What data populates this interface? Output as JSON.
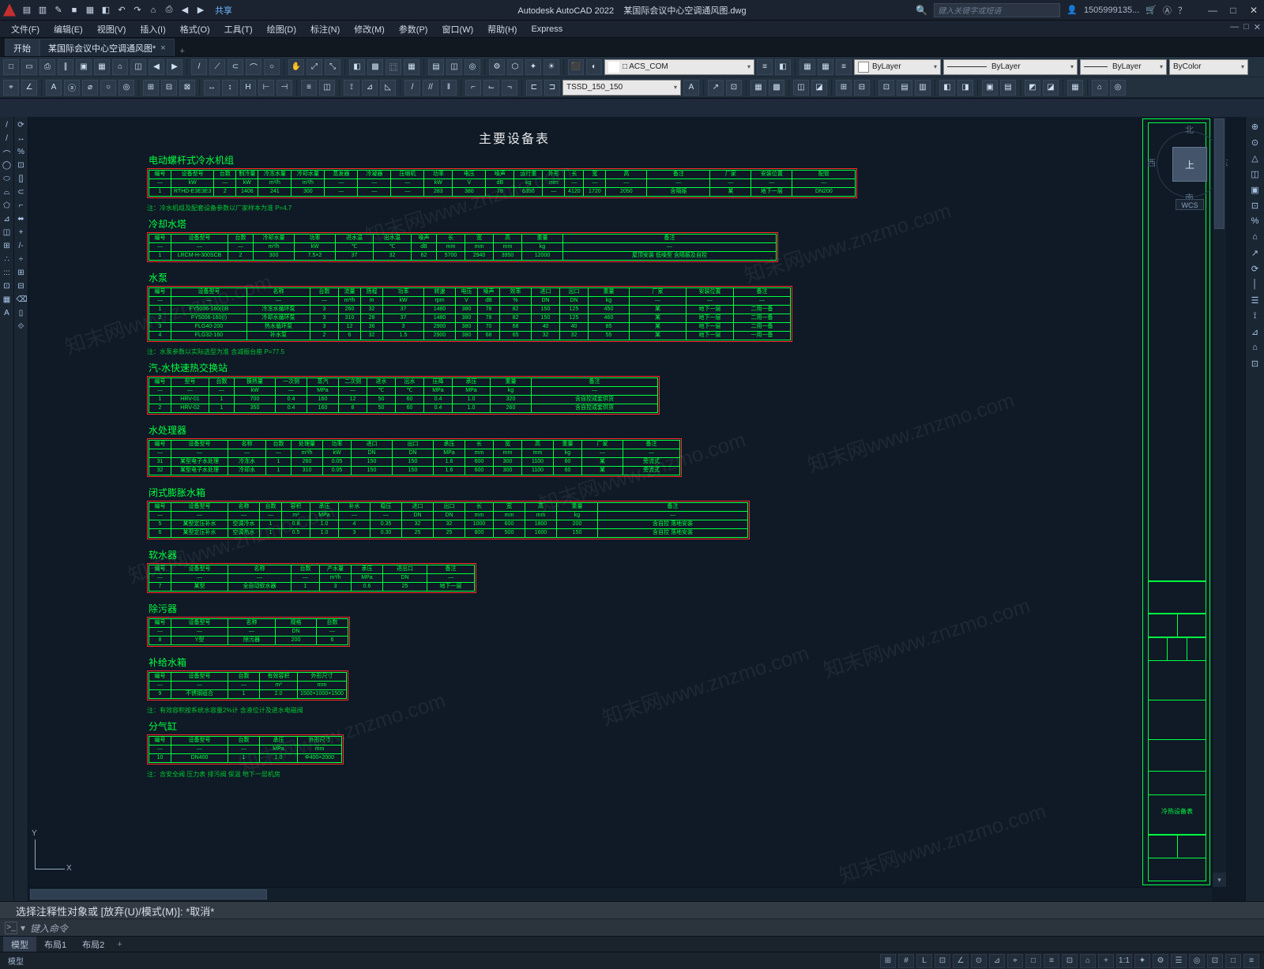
{
  "app": {
    "name": "Autodesk AutoCAD 2022",
    "filename": "某国际会议中心空调通风图.dwg",
    "share": "共享",
    "search_placeholder": "键入关键字或短语",
    "user": "1505999135...",
    "window_buttons": {
      "min": "—",
      "max": "□",
      "close": "✕"
    },
    "doc_min": "—",
    "doc_max": "□",
    "doc_close": "✕"
  },
  "qat": [
    "▤",
    "▥",
    "✎",
    "■",
    "▦",
    "◧",
    "↶",
    "↷",
    "⌂",
    "⎙",
    "◀",
    "▶"
  ],
  "menubar": [
    "文件(F)",
    "编辑(E)",
    "视图(V)",
    "插入(I)",
    "格式(O)",
    "工具(T)",
    "绘图(D)",
    "标注(N)",
    "修改(M)",
    "参数(P)",
    "窗口(W)",
    "帮助(H)",
    "Express"
  ],
  "doctabs": {
    "start": "开始",
    "file": "某国际会议中心空调通风图*",
    "x": "×",
    "plus": "+"
  },
  "ribbon": {
    "row1_icons": [
      "□",
      "▭",
      "⎙",
      "∥",
      "▣",
      "▦",
      "⌂",
      "◫",
      "◀",
      "▶",
      "│",
      "/",
      "⟋",
      "⊂",
      "⌒",
      "○",
      "│",
      "✋",
      "⤢",
      "⤡",
      "│",
      "◧",
      "▩",
      "⿴",
      "▦",
      "│",
      "▤",
      "◫",
      "◎",
      "│",
      "⚙",
      "⬡",
      "✦",
      "☀",
      "│",
      "⬛",
      "◐"
    ],
    "layer_swatch": "#ffffff",
    "layer_name": "ACS_COM",
    "bylayer_icons": [
      "≡",
      "◧",
      "│",
      "▦",
      "▦",
      "≡"
    ],
    "prop_layer_color": "ByLayer",
    "prop_linetype": "ByLayer",
    "prop_lineweight": "ByLayer",
    "prop_color": "ByColor",
    "row2_icons_a": [
      "⌖",
      "∠",
      "│",
      "A",
      "ⓐ",
      "⌀",
      "○",
      "◎",
      "│",
      "⊞",
      "⊟",
      "⊠",
      "│",
      "↔",
      "↕",
      "H",
      "⊢",
      "⊣",
      "│",
      "≡",
      "◫",
      "│",
      "⟟",
      "⊿",
      "◺",
      "│",
      "/",
      "//",
      "‖",
      "│",
      "⌐",
      "⌙",
      "¬",
      "│",
      "⊏",
      "⊐"
    ],
    "style_dd": "TSSD_150_150",
    "row2_icons_b": [
      "A",
      "│",
      "↗",
      "⊡",
      "│",
      "▦",
      "▩",
      "│",
      "◫",
      "◪",
      "│",
      "⊞",
      "⊟",
      "│",
      "⊡",
      "▤",
      "▥",
      "│",
      "◧",
      "◨",
      "│",
      "▣",
      "▤",
      "│",
      "◩",
      "◪",
      "│",
      "▦",
      "│",
      "⌂",
      "◎"
    ]
  },
  "draw_tools": {
    "colA": [
      "/",
      "/",
      "⌒",
      "◯",
      "⬭",
      "⌓",
      "⬠",
      "⊿",
      "◫",
      "⊞",
      "∴",
      ":::",
      "⊡",
      "▦",
      "A"
    ],
    "colB": [
      "⟳",
      "↔",
      "%",
      "⊡",
      "[]",
      "⊂",
      "⌐",
      "⬌",
      "+",
      "/-",
      "÷",
      "⊞",
      "⊟",
      "⌫",
      "▯",
      "⟐"
    ]
  },
  "right_tools": [
    "⊕",
    "⊙",
    "△",
    "◫",
    "▣",
    "⊡",
    "%",
    "⌂",
    "↗",
    "⟳",
    "│",
    "☰",
    "⟟",
    "⊿",
    "⌂",
    "⊡"
  ],
  "viewcube": {
    "n": "北",
    "s": "南",
    "e": "东",
    "w": "西",
    "top": "上",
    "wcs": "WCS"
  },
  "ucs": {
    "x": "X",
    "y": "Y"
  },
  "drawing": {
    "title_color": "#e8e8e8",
    "cad_green": "#00ff40",
    "frame_red": "#ff2a2a",
    "bg": "#0f1a26",
    "page_title": "主要设备表",
    "sections": [
      {
        "label": "电动螺杆式冷水机组",
        "widths": [
          28,
          48,
          28,
          28,
          42,
          42,
          42,
          42,
          42,
          36,
          42,
          36,
          36,
          28,
          24,
          28,
          52,
          80,
          52,
          52,
          80
        ],
        "rows": [
          [
            "编号",
            "设备型号",
            "台数",
            "制冷量",
            "冷冻水量",
            "冷却水量",
            "蒸发器",
            "冷凝器",
            "压缩机",
            "功率",
            "电压",
            "噪声",
            "运行重",
            "外形",
            "长",
            "宽",
            "高",
            "备注",
            "厂家",
            "安装位置",
            "配管"
          ],
          [
            "—",
            "kW",
            "—",
            "kW",
            "m³/h",
            "m³/h",
            "—",
            "—",
            "—",
            "kW",
            "V",
            "dB",
            "kg",
            "mm",
            "—",
            "—",
            "—",
            "—",
            "—",
            "—",
            "—"
          ],
          [
            "1",
            "RTHD-E3E3E3",
            "2",
            "1406",
            "241",
            "300",
            "—",
            "—",
            "—",
            "283",
            "380",
            "78",
            "6350",
            "—",
            "4120",
            "1720",
            "2050",
            "含隔振",
            "某",
            "地下一层",
            "DN200"
          ]
        ],
        "note": "注：冷水机组及配套设备参数以厂家样本为准 P=4.7"
      },
      {
        "label": "冷却水塔",
        "widths": [
          28,
          72,
          32,
          52,
          52,
          48,
          48,
          32,
          36,
          36,
          36,
          52,
          270
        ],
        "rows": [
          [
            "编号",
            "设备型号",
            "台数",
            "冷却水量",
            "功率",
            "进水温",
            "出水温",
            "噪声",
            "长",
            "宽",
            "高",
            "重量",
            "备注"
          ],
          [
            "—",
            "—",
            "—",
            "m³/h",
            "kW",
            "℃",
            "℃",
            "dB",
            "mm",
            "mm",
            "mm",
            "kg",
            "—"
          ],
          [
            "1",
            "LRCM-H-300SCB",
            "2",
            "300",
            "7.5×2",
            "37",
            "32",
            "62",
            "5700",
            "2940",
            "3950",
            "12000",
            "屋顶安装 低噪型 含隔振及自控"
          ]
        ]
      },
      {
        "label": "水泵",
        "widths": [
          28,
          96,
          80,
          36,
          28,
          28,
          52,
          40,
          28,
          28,
          40,
          36,
          36,
          52,
          72,
          60,
          72
        ],
        "rows": [
          [
            "编号",
            "设备型号",
            "名称",
            "台数",
            "流量",
            "扬程",
            "功率",
            "转速",
            "电压",
            "噪声",
            "效率",
            "进口",
            "出口",
            "重量",
            "厂家",
            "安装位置",
            "备注"
          ],
          [
            "—",
            "—",
            "—",
            "—",
            "m³/h",
            "m",
            "kW",
            "rpm",
            "V",
            "dB",
            "%",
            "DN",
            "DN",
            "kg",
            "—",
            "—",
            "—"
          ],
          [
            "1",
            "FY5006-160(I)B",
            "冷冻水循环泵",
            "3",
            "260",
            "32",
            "37",
            "1480",
            "380",
            "78",
            "82",
            "150",
            "125",
            "450",
            "某",
            "地下一层",
            "二用一备"
          ],
          [
            "2",
            "FY5006-160(I)",
            "冷却水循环泵",
            "3",
            "310",
            "28",
            "37",
            "1480",
            "380",
            "78",
            "82",
            "150",
            "125",
            "460",
            "某",
            "地下一层",
            "二用一备"
          ],
          [
            "3",
            "FLG40-200",
            "热水循环泵",
            "3",
            "12",
            "36",
            "3",
            "2900",
            "380",
            "70",
            "68",
            "40",
            "40",
            "85",
            "某",
            "地下一层",
            "二用一备"
          ],
          [
            "4",
            "FLG32-160",
            "补水泵",
            "2",
            "6",
            "32",
            "1.5",
            "2900",
            "380",
            "68",
            "65",
            "32",
            "32",
            "55",
            "某",
            "地下一层",
            "一用一备"
          ]
        ],
        "note": "注：水泵参数以实际选型为准 含减振台座 P=77.5"
      },
      {
        "label": "汽-水快速热交换站",
        "widths": [
          28,
          48,
          32,
          52,
          40,
          40,
          36,
          36,
          36,
          36,
          48,
          52,
          160
        ],
        "rows": [
          [
            "编号",
            "型号",
            "台数",
            "换热量",
            "一次侧",
            "蒸汽",
            "二次侧",
            "进水",
            "出水",
            "压降",
            "承压",
            "重量",
            "备注"
          ],
          [
            "—",
            "—",
            "—",
            "kW",
            "—",
            "MPa",
            "—",
            "℃",
            "℃",
            "MPa",
            "MPa",
            "kg",
            "—"
          ],
          [
            "1",
            "HRV-01",
            "1",
            "700",
            "0.4",
            "160",
            "12",
            "50",
            "60",
            "0.4",
            "1.0",
            "320",
            "含自控成套供货"
          ],
          [
            "2",
            "HRV-02",
            "1",
            "350",
            "0.4",
            "160",
            "8",
            "50",
            "60",
            "0.4",
            "1.0",
            "260",
            "含自控成套供货"
          ]
        ]
      },
      {
        "label": "水处理器",
        "widths": [
          28,
          72,
          48,
          32,
          40,
          36,
          52,
          52,
          40,
          36,
          36,
          40,
          36,
          52,
          72
        ],
        "rows": [
          [
            "编号",
            "设备型号",
            "名称",
            "台数",
            "处理量",
            "功率",
            "进口",
            "出口",
            "承压",
            "长",
            "宽",
            "高",
            "重量",
            "厂家",
            "备注"
          ],
          [
            "—",
            "—",
            "—",
            "—",
            "m³/h",
            "kW",
            "DN",
            "DN",
            "MPa",
            "mm",
            "mm",
            "mm",
            "kg",
            "—",
            "—"
          ],
          [
            "31",
            "某型电子水处理",
            "冷冻水",
            "1",
            "260",
            "0.05",
            "150",
            "150",
            "1.6",
            "600",
            "300",
            "1100",
            "60",
            "某",
            "旁流式"
          ],
          [
            "32",
            "某型电子水处理",
            "冷却水",
            "1",
            "310",
            "0.05",
            "150",
            "150",
            "1.6",
            "600",
            "300",
            "1100",
            "60",
            "某",
            "旁流式"
          ]
        ]
      },
      {
        "label": "闭式膨胀水箱",
        "widths": [
          28,
          72,
          40,
          28,
          36,
          36,
          40,
          40,
          40,
          40,
          36,
          40,
          40,
          52,
          190
        ],
        "rows": [
          [
            "编号",
            "设备型号",
            "名称",
            "台数",
            "容积",
            "承压",
            "补水",
            "稳压",
            "进口",
            "出口",
            "长",
            "宽",
            "高",
            "重量",
            "备注"
          ],
          [
            "—",
            "—",
            "—",
            "—",
            "m³",
            "MPa",
            "—",
            "—",
            "DN",
            "DN",
            "mm",
            "mm",
            "mm",
            "kg",
            "—"
          ],
          [
            "5",
            "某型定压补水",
            "空调冷水",
            "1",
            "0.8",
            "1.0",
            "4",
            "0.35",
            "32",
            "32",
            "1000",
            "600",
            "1800",
            "200",
            "含自控 落地安装"
          ],
          [
            "6",
            "某型定压补水",
            "空调热水",
            "1",
            "0.5",
            "1.0",
            "3",
            "0.30",
            "25",
            "25",
            "800",
            "500",
            "1600",
            "150",
            "含自控 落地安装"
          ]
        ]
      },
      {
        "label": "软水器",
        "widths": [
          28,
          72,
          80,
          36,
          40,
          40,
          56,
          60
        ],
        "rows": [
          [
            "编号",
            "设备型号",
            "名称",
            "台数",
            "产水量",
            "承压",
            "进出口",
            "备注"
          ],
          [
            "—",
            "—",
            "—",
            "—",
            "m³/h",
            "MPa",
            "DN",
            "—"
          ],
          [
            "7",
            "某型",
            "全自动软水器",
            "1",
            "3",
            "0.6",
            "25",
            "地下一层"
          ]
        ]
      },
      {
        "label": "除污器",
        "widths": [
          28,
          72,
          60,
          52,
          40
        ],
        "rows": [
          [
            "编号",
            "设备型号",
            "名称",
            "规格",
            "台数"
          ],
          [
            "—",
            "—",
            "—",
            "DN",
            "—"
          ],
          [
            "8",
            "Y型",
            "除污器",
            "200",
            "6"
          ]
        ]
      },
      {
        "label": "补给水箱",
        "widths": [
          28,
          72,
          40,
          48,
          56
        ],
        "rows": [
          [
            "编号",
            "设备型号",
            "台数",
            "有效容积",
            "外形尺寸"
          ],
          [
            "—",
            "—",
            "—",
            "m³",
            "mm"
          ],
          [
            "9",
            "不锈钢组合",
            "1",
            "2.0",
            "1500×1000×1500"
          ]
        ],
        "note": "注：有效容积按系统水容量2%计 含液位计及进水电磁阀"
      },
      {
        "label": "分气缸",
        "widths": [
          28,
          72,
          40,
          48,
          56
        ],
        "rows": [
          [
            "编号",
            "设备型号",
            "台数",
            "承压",
            "外形尺寸"
          ],
          [
            "—",
            "—",
            "—",
            "MPa",
            "mm"
          ],
          [
            "10",
            "DN400",
            "1",
            "1.0",
            "Φ400×2000"
          ]
        ],
        "note": "注：含安全阀 压力表 排污阀 保温 地下一层机房"
      }
    ],
    "titleblock_label": "冷热设备表"
  },
  "watermark": {
    "text": "知末网www.znzmo.com",
    "brand": "知末",
    "id": "ID: 1159909762"
  },
  "cmd": {
    "history": "选择注释性对象或  [放弃(U)/模式(M)]:  *取消*",
    "prompt": "键入命令",
    "chev": ">_",
    "arrow": "▾"
  },
  "layout_tabs": {
    "model": "模型",
    "l1": "布局1",
    "l2": "布局2",
    "plus": "+"
  },
  "statusbar": {
    "left_text": "模型",
    "buttons": [
      "⊞",
      "#",
      "L",
      "⊡",
      "∠",
      "⊙",
      "⊿",
      "⌖",
      "□",
      "≡",
      "⊡",
      "⌂",
      "+",
      "1:1",
      "✦",
      "⚙",
      "☰",
      "◎",
      "⊡",
      "□",
      "≡"
    ]
  }
}
